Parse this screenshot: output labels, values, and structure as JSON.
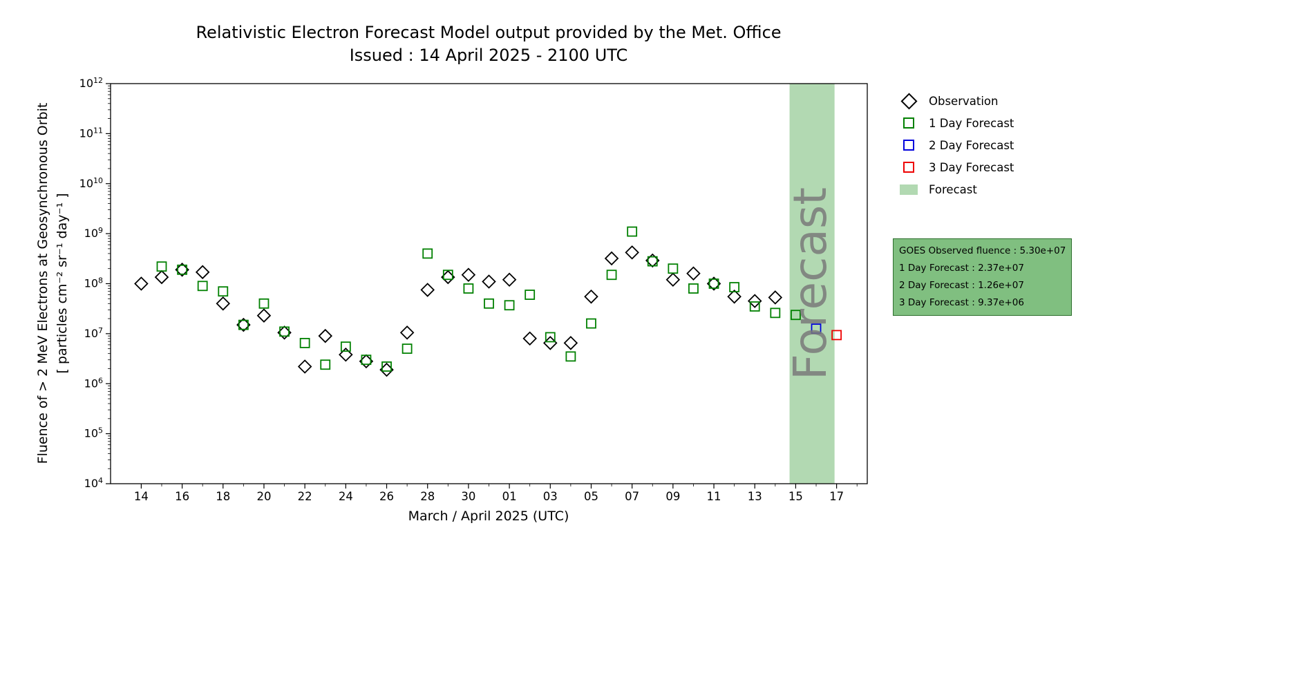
{
  "chart_data": {
    "type": "scatter",
    "title": "Relativistic Electron Forecast Model output provided by the Met. Office",
    "subtitle": "Issued : 14 April 2025 - 2100 UTC",
    "xlabel": "March / April 2025 (UTC)",
    "ylabel_line1": "Fluence of > 2 MeV Electrons at Geosynchronous Orbit",
    "ylabel_line2": "[ particles cm⁻² sr⁻¹ day⁻¹ ]",
    "y_scale": "log",
    "ylim_exponents": [
      4,
      12
    ],
    "y_exponent_ticks": [
      4,
      5,
      6,
      7,
      8,
      9,
      10,
      11,
      12
    ],
    "x_domain_days": [
      -1.5,
      35.5
    ],
    "x_major_ticks": [
      {
        "day": 0,
        "label": "14"
      },
      {
        "day": 2,
        "label": "16"
      },
      {
        "day": 4,
        "label": "18"
      },
      {
        "day": 6,
        "label": "20"
      },
      {
        "day": 8,
        "label": "22"
      },
      {
        "day": 10,
        "label": "24"
      },
      {
        "day": 12,
        "label": "26"
      },
      {
        "day": 14,
        "label": "28"
      },
      {
        "day": 16,
        "label": "30"
      },
      {
        "day": 18,
        "label": "01"
      },
      {
        "day": 20,
        "label": "03"
      },
      {
        "day": 22,
        "label": "05"
      },
      {
        "day": 24,
        "label": "07"
      },
      {
        "day": 26,
        "label": "09"
      },
      {
        "day": 28,
        "label": "11"
      },
      {
        "day": 30,
        "label": "13"
      },
      {
        "day": 32,
        "label": "15"
      },
      {
        "day": 34,
        "label": "17"
      }
    ],
    "forecast_band": {
      "day_start": 31.7,
      "day_end": 33.9,
      "color": "#b2d9b2",
      "label": "Forecast",
      "label_color": "#7a7a7a",
      "label_day": 32.7,
      "label_font_size": 66
    },
    "series": [
      {
        "name": "Observation",
        "marker": "diamond",
        "color": "#000000",
        "points": [
          [
            0,
            100000000.0
          ],
          [
            1,
            135000000.0
          ],
          [
            2,
            190000000.0
          ],
          [
            3,
            170000000.0
          ],
          [
            4,
            40000000.0
          ],
          [
            5,
            15000000.0
          ],
          [
            6,
            23000000.0
          ],
          [
            7,
            10500000.0
          ],
          [
            8,
            2200000.0
          ],
          [
            9,
            9000000.0
          ],
          [
            10,
            3800000.0
          ],
          [
            11,
            2800000.0
          ],
          [
            12,
            1900000.0
          ],
          [
            13,
            10500000.0
          ],
          [
            14,
            75000000.0
          ],
          [
            15,
            135000000.0
          ],
          [
            16,
            150000000.0
          ],
          [
            17,
            110000000.0
          ],
          [
            18,
            120000000.0
          ],
          [
            19,
            8000000.0
          ],
          [
            20,
            6500000.0
          ],
          [
            21,
            6500000.0
          ],
          [
            22,
            55000000.0
          ],
          [
            23,
            320000000.0
          ],
          [
            24,
            420000000.0
          ],
          [
            25,
            290000000.0
          ],
          [
            26,
            120000000.0
          ],
          [
            27,
            160000000.0
          ],
          [
            28,
            100000000.0
          ],
          [
            29,
            55000000.0
          ],
          [
            30,
            45000000.0
          ],
          [
            31,
            53000000.0
          ]
        ]
      },
      {
        "name": "1 Day Forecast",
        "marker": "square",
        "color": "#008000",
        "points": [
          [
            1,
            220000000.0
          ],
          [
            2,
            190000000.0
          ],
          [
            3,
            90000000.0
          ],
          [
            4,
            70000000.0
          ],
          [
            5,
            15000000.0
          ],
          [
            6,
            40000000.0
          ],
          [
            7,
            11000000.0
          ],
          [
            8,
            6500000.0
          ],
          [
            9,
            2400000.0
          ],
          [
            10,
            5500000.0
          ],
          [
            11,
            3000000.0
          ],
          [
            12,
            2200000.0
          ],
          [
            13,
            5000000.0
          ],
          [
            14,
            400000000.0
          ],
          [
            15,
            150000000.0
          ],
          [
            16,
            80000000.0
          ],
          [
            17,
            40000000.0
          ],
          [
            18,
            37000000.0
          ],
          [
            19,
            60000000.0
          ],
          [
            20,
            8500000.0
          ],
          [
            21,
            3500000.0
          ],
          [
            22,
            16000000.0
          ],
          [
            23,
            150000000.0
          ],
          [
            24,
            1100000000.0
          ],
          [
            25,
            280000000.0
          ],
          [
            26,
            200000000.0
          ],
          [
            27,
            80000000.0
          ],
          [
            28,
            100000000.0
          ],
          [
            29,
            85000000.0
          ],
          [
            30,
            35000000.0
          ],
          [
            31,
            26000000.0
          ],
          [
            32,
            23700000.0
          ]
        ]
      },
      {
        "name": "2 Day Forecast",
        "marker": "square",
        "color": "#0000dd",
        "points": [
          [
            33,
            12600000.0
          ]
        ]
      },
      {
        "name": "3 Day Forecast",
        "marker": "square",
        "color": "#ee0000",
        "points": [
          [
            34,
            9370000.0
          ]
        ]
      }
    ],
    "legend": {
      "items": [
        {
          "label": "Observation",
          "marker": "diamond",
          "color": "#000000"
        },
        {
          "label": "1 Day Forecast",
          "marker": "square",
          "color": "#008000"
        },
        {
          "label": "2 Day Forecast",
          "marker": "square",
          "color": "#0000dd"
        },
        {
          "label": "3 Day Forecast",
          "marker": "square",
          "color": "#ee0000"
        },
        {
          "label": "Forecast",
          "marker": "patch",
          "color": "#b2d9b2"
        }
      ]
    },
    "info_box": {
      "bg_color": "#80bf80",
      "lines": [
        "GOES Observed fluence : 5.30e+07",
        "1 Day Forecast : 2.37e+07",
        "2 Day Forecast : 1.26e+07",
        "3 Day Forecast : 9.37e+06"
      ]
    }
  }
}
